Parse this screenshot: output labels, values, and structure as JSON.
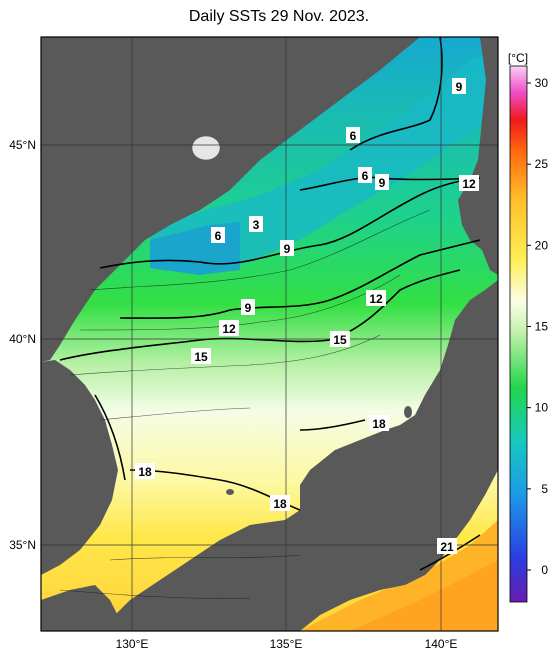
{
  "title": "Daily SSTs 29 Nov. 2023.",
  "lat_labels": [
    "45°N",
    "40°N",
    "35°N"
  ],
  "lon_labels": [
    "130°E",
    "135°E",
    "140°E"
  ],
  "colorbar": {
    "unit": "[°C]",
    "ticks": [
      "30",
      "25",
      "20",
      "15",
      "10",
      "5",
      "0"
    ]
  },
  "isotherm_labels": [
    "9",
    "6",
    "6",
    "9",
    "12",
    "6",
    "3",
    "9",
    "12",
    "9",
    "12",
    "15",
    "15",
    "18",
    "18",
    "18",
    "21"
  ],
  "colors": {
    "land": "#595959",
    "cold": "#1fb4d6",
    "green": "#1fdc5a",
    "pale": "#f2fde8",
    "warm_yellow": "#ffe84a",
    "orange": "#ffb327"
  }
}
